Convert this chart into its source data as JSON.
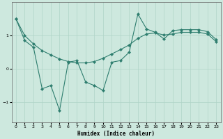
{
  "xlabel": "Humidex (Indice chaleur)",
  "bg_color": "#cde8de",
  "line_color": "#2d7d6e",
  "grid_color": "#b0d4c8",
  "x_ticks": [
    0,
    1,
    2,
    3,
    4,
    5,
    6,
    7,
    8,
    9,
    10,
    11,
    12,
    13,
    14,
    15,
    16,
    17,
    18,
    19,
    20,
    21,
    22,
    23
  ],
  "ylim": [
    -1.6,
    2.0
  ],
  "xlim": [
    -0.5,
    23.5
  ],
  "yticks": [
    -1,
    0,
    1
  ],
  "jagged_x": [
    0,
    1,
    2,
    3,
    4,
    5,
    6,
    7,
    8,
    9,
    10,
    11,
    12,
    13,
    14,
    15,
    16,
    17,
    18,
    19,
    20,
    21,
    22,
    23
  ],
  "jagged_y": [
    1.5,
    0.85,
    0.65,
    -0.6,
    -0.5,
    -1.25,
    0.2,
    0.25,
    -0.4,
    -0.5,
    -0.65,
    0.2,
    0.25,
    0.5,
    1.65,
    1.2,
    1.1,
    0.9,
    1.15,
    1.18,
    1.18,
    1.18,
    1.12,
    0.88
  ],
  "smooth_x": [
    0,
    1,
    2,
    3,
    4,
    5,
    6,
    7,
    8,
    9,
    10,
    11,
    12,
    13,
    14,
    15,
    16,
    17,
    18,
    19,
    20,
    21,
    22,
    23
  ],
  "smooth_y": [
    1.5,
    1.0,
    0.75,
    0.55,
    0.42,
    0.3,
    0.22,
    0.18,
    0.18,
    0.22,
    0.32,
    0.45,
    0.58,
    0.72,
    0.92,
    1.05,
    1.08,
    1.02,
    1.05,
    1.1,
    1.1,
    1.1,
    1.05,
    0.82
  ]
}
